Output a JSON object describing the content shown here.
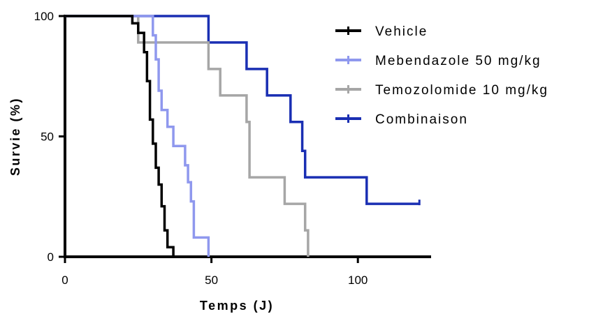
{
  "chart_data": {
    "type": "line",
    "step": true,
    "xlabel": "Temps (J)",
    "ylabel": "Survie (%)",
    "xlim": [
      0,
      125
    ],
    "ylim": [
      0,
      100
    ],
    "xticks": [
      0,
      50,
      100
    ],
    "yticks": [
      0,
      50,
      100
    ],
    "xtick_labels": [
      "0",
      "50",
      "100"
    ],
    "ytick_labels": [
      "0",
      "50",
      "100"
    ],
    "grid": false,
    "legend_position": "top-right",
    "series": [
      {
        "name": "Vehicle",
        "color": "#000000",
        "points": [
          [
            0,
            100
          ],
          [
            23,
            100
          ],
          [
            23,
            97
          ],
          [
            25,
            97
          ],
          [
            25,
            93
          ],
          [
            27,
            93
          ],
          [
            27,
            85
          ],
          [
            28,
            85
          ],
          [
            28,
            73
          ],
          [
            29,
            73
          ],
          [
            29,
            57
          ],
          [
            30,
            57
          ],
          [
            30,
            47
          ],
          [
            31,
            47
          ],
          [
            31,
            37
          ],
          [
            32,
            37
          ],
          [
            32,
            30
          ],
          [
            33,
            30
          ],
          [
            33,
            21
          ],
          [
            34,
            21
          ],
          [
            34,
            11
          ],
          [
            35,
            11
          ],
          [
            35,
            4
          ],
          [
            37,
            4
          ],
          [
            37,
            0
          ]
        ]
      },
      {
        "name": "Mebendazole 50 mg/kg",
        "color": "#8f98ee",
        "points": [
          [
            0,
            100
          ],
          [
            30,
            100
          ],
          [
            30,
            92
          ],
          [
            31,
            92
          ],
          [
            31,
            82
          ],
          [
            32,
            82
          ],
          [
            32,
            69
          ],
          [
            33,
            69
          ],
          [
            33,
            61
          ],
          [
            35,
            61
          ],
          [
            35,
            54
          ],
          [
            37,
            54
          ],
          [
            37,
            46
          ],
          [
            41,
            46
          ],
          [
            41,
            38
          ],
          [
            42,
            38
          ],
          [
            42,
            31
          ],
          [
            43,
            31
          ],
          [
            43,
            23
          ],
          [
            44,
            23
          ],
          [
            44,
            8
          ],
          [
            49,
            8
          ],
          [
            49,
            0
          ]
        ]
      },
      {
        "name": "Temozolomide 10 mg/kg",
        "color": "#a6a6a6",
        "points": [
          [
            0,
            100
          ],
          [
            25,
            100
          ],
          [
            25,
            89
          ],
          [
            49,
            89
          ],
          [
            49,
            78
          ],
          [
            53,
            78
          ],
          [
            53,
            67
          ],
          [
            62,
            67
          ],
          [
            62,
            56
          ],
          [
            63,
            56
          ],
          [
            63,
            33
          ],
          [
            75,
            33
          ],
          [
            75,
            22
          ],
          [
            82,
            22
          ],
          [
            82,
            11
          ],
          [
            83,
            11
          ],
          [
            83,
            0
          ]
        ]
      },
      {
        "name": "Combinaison",
        "color": "#1a2fb3",
        "points": [
          [
            0,
            100
          ],
          [
            49,
            100
          ],
          [
            49,
            89
          ],
          [
            62,
            89
          ],
          [
            62,
            78
          ],
          [
            69,
            78
          ],
          [
            69,
            67
          ],
          [
            77,
            67
          ],
          [
            77,
            56
          ],
          [
            81,
            56
          ],
          [
            81,
            44
          ],
          [
            82,
            44
          ],
          [
            82,
            33
          ],
          [
            103,
            33
          ],
          [
            103,
            22
          ],
          [
            121,
            22
          ]
        ]
      }
    ]
  }
}
